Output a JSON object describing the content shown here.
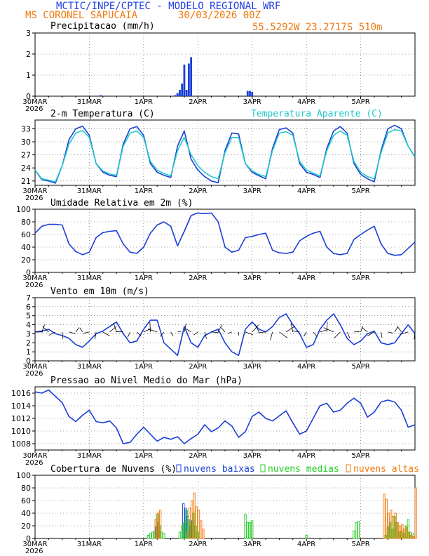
{
  "header": {
    "line1": "MCTIC/INPE/CPTEC - MODELO REGIONAL WRF",
    "station": "MS CORONEL SAPUCAIA",
    "run": "30/03/2026 00Z",
    "coords": "55.5292W 23.2717S 510m",
    "colors": {
      "line1": "#1f3fe0",
      "line2": "#f07a10"
    }
  },
  "time_axis": {
    "day_labels": [
      "30MAR",
      "31MAR",
      "1APR",
      "2APR",
      "3APR",
      "4APR",
      "5APR"
    ],
    "year": "2026"
  },
  "panels": [
    {
      "title": "Precipitacao (mm/h)"
    },
    {
      "title": "2-m Temperatura (C)",
      "legend": "Temperatura Aparente (C)"
    },
    {
      "title": "Umidade Relativa em 2m (%)"
    },
    {
      "title": "Vento em 10m (m/s)"
    },
    {
      "title": "Pressao ao Nivel Medio do Mar (hPa)"
    },
    {
      "title": "Cobertura de Nuvens (%)",
      "legend": [
        "nuvens baixas",
        "nuvens medias",
        "nuvens altas"
      ]
    }
  ],
  "chart_data": [
    {
      "type": "bar",
      "title": "Precipitacao (mm/h)",
      "ylim": [
        0,
        3
      ],
      "yticks": [
        0,
        1,
        2,
        3
      ],
      "color": "#1b3fd6",
      "x_hours": [
        29,
        62,
        63,
        64,
        65,
        66,
        67,
        68,
        69,
        94,
        95,
        96
      ],
      "values": [
        0.05,
        0.05,
        0.15,
        0.3,
        0.6,
        1.5,
        0.3,
        1.55,
        1.85,
        0.25,
        0.25,
        0.2
      ]
    },
    {
      "type": "line",
      "title": "2-m Temperatura (C)",
      "ylim": [
        20,
        35
      ],
      "yticks": [
        21,
        24,
        27,
        30,
        33
      ],
      "x_hours": [
        0,
        3,
        6,
        9,
        12,
        15,
        18,
        21,
        24,
        27,
        30,
        33,
        36,
        39,
        42,
        45,
        48,
        51,
        54,
        57,
        60,
        63,
        66,
        69,
        72,
        75,
        78,
        81,
        84,
        87,
        90,
        93,
        96,
        99,
        102,
        105,
        108,
        111,
        114,
        117,
        120,
        123,
        126,
        129,
        132,
        135,
        138,
        141,
        144,
        147,
        150,
        153,
        156,
        159,
        162,
        165,
        168
      ],
      "series": [
        {
          "name": "2-m Temperatura (C)",
          "color": "#1b3fd6",
          "values": [
            23.5,
            21.3,
            21.0,
            20.5,
            24.5,
            30.5,
            33.0,
            33.6,
            31.5,
            25.0,
            23.0,
            22.3,
            22.0,
            29.5,
            33.0,
            33.5,
            31.5,
            25.0,
            23.0,
            22.3,
            21.8,
            29.0,
            32.5,
            26.0,
            23.5,
            22.0,
            21.0,
            20.6,
            28.0,
            32.0,
            31.8,
            25.0,
            23.0,
            22.2,
            21.5,
            28.5,
            32.8,
            33.2,
            32.0,
            25.0,
            23.0,
            22.5,
            21.8,
            28.5,
            32.5,
            33.5,
            32.0,
            25.0,
            22.5,
            21.5,
            20.8,
            28.0,
            33.0,
            33.8,
            33.0,
            29.0,
            26.5
          ]
        },
        {
          "name": "Temperatura Aparente (C)",
          "color": "#20c8c8",
          "values": [
            23.5,
            21.5,
            21.2,
            20.8,
            24.5,
            29.5,
            32.0,
            32.6,
            31.0,
            25.0,
            23.3,
            22.6,
            22.3,
            29.0,
            32.0,
            32.5,
            31.0,
            25.5,
            23.5,
            22.7,
            22.2,
            28.0,
            31.0,
            27.0,
            24.5,
            23.0,
            22.0,
            21.5,
            27.5,
            31.0,
            31.0,
            25.0,
            23.3,
            22.5,
            22.0,
            28.0,
            32.0,
            32.3,
            31.5,
            25.5,
            23.5,
            22.8,
            22.2,
            28.0,
            31.5,
            32.5,
            31.5,
            25.5,
            23.0,
            22.0,
            21.5,
            27.5,
            32.0,
            32.8,
            32.5,
            29.0,
            26.5
          ]
        }
      ]
    },
    {
      "type": "line",
      "title": "Umidade Relativa em 2m (%)",
      "ylim": [
        0,
        100
      ],
      "yticks": [
        0,
        20,
        40,
        60,
        80,
        100
      ],
      "x_hours": [
        0,
        3,
        6,
        9,
        12,
        15,
        18,
        21,
        24,
        27,
        30,
        33,
        36,
        39,
        42,
        45,
        48,
        51,
        54,
        57,
        60,
        63,
        66,
        69,
        72,
        75,
        78,
        81,
        84,
        87,
        90,
        93,
        96,
        99,
        102,
        105,
        108,
        111,
        114,
        117,
        120,
        123,
        126,
        129,
        132,
        135,
        138,
        141,
        144,
        147,
        150,
        153,
        156,
        159,
        162,
        165,
        168
      ],
      "series": [
        {
          "name": "Umidade Relativa",
          "color": "#1b3fd6",
          "values": [
            62,
            73,
            76,
            76,
            75,
            45,
            33,
            28,
            32,
            55,
            63,
            65,
            66,
            45,
            32,
            30,
            40,
            62,
            75,
            80,
            73,
            42,
            65,
            90,
            94,
            93,
            94,
            80,
            40,
            32,
            35,
            55,
            57,
            60,
            62,
            35,
            31,
            30,
            32,
            50,
            57,
            62,
            65,
            40,
            30,
            28,
            30,
            52,
            60,
            67,
            73,
            45,
            30,
            27,
            28,
            38,
            48
          ]
        }
      ]
    },
    {
      "type": "line",
      "title": "Vento em 10m (m/s)",
      "ylim": [
        0,
        7
      ],
      "yticks": [
        0,
        1,
        2,
        3,
        4,
        5,
        6,
        7
      ],
      "x_hours": [
        0,
        3,
        6,
        9,
        12,
        15,
        18,
        21,
        24,
        27,
        30,
        33,
        36,
        39,
        42,
        45,
        48,
        51,
        54,
        57,
        60,
        63,
        66,
        69,
        72,
        75,
        78,
        81,
        84,
        87,
        90,
        93,
        96,
        99,
        102,
        105,
        108,
        111,
        114,
        117,
        120,
        123,
        126,
        129,
        132,
        135,
        138,
        141,
        144,
        147,
        150,
        153,
        156,
        159,
        162,
        165,
        168
      ],
      "series": [
        {
          "name": "Vento em 10m",
          "color": "#1b3fd6",
          "values": [
            3.2,
            3.3,
            3.5,
            3.0,
            2.8,
            2.5,
            1.8,
            1.5,
            2.2,
            3.0,
            3.3,
            3.8,
            4.3,
            3.0,
            2.0,
            2.2,
            3.5,
            4.5,
            4.5,
            2.0,
            1.3,
            0.6,
            3.8,
            2.0,
            1.5,
            2.8,
            3.2,
            3.5,
            2.0,
            1.0,
            0.6,
            3.5,
            4.3,
            3.5,
            3.2,
            3.8,
            4.8,
            5.2,
            4.0,
            3.0,
            1.5,
            1.8,
            3.5,
            4.5,
            5.2,
            4.0,
            2.5,
            1.8,
            2.2,
            3.0,
            3.3,
            2.0,
            1.8,
            2.0,
            3.0,
            4.0,
            3.0
          ]
        }
      ]
    },
    {
      "type": "line",
      "title": "Pressao ao Nivel Medio do Mar (hPa)",
      "ylim": [
        1007,
        1017
      ],
      "yticks": [
        1008,
        1010,
        1012,
        1014,
        1016
      ],
      "x_hours": [
        0,
        3,
        6,
        9,
        12,
        15,
        18,
        21,
        24,
        27,
        30,
        33,
        36,
        39,
        42,
        45,
        48,
        51,
        54,
        57,
        60,
        63,
        66,
        69,
        72,
        75,
        78,
        81,
        84,
        87,
        90,
        93,
        96,
        99,
        102,
        105,
        108,
        111,
        114,
        117,
        120,
        123,
        126,
        129,
        132,
        135,
        138,
        141,
        144,
        147,
        150,
        153,
        156,
        159,
        162,
        165,
        168
      ],
      "series": [
        {
          "name": "Pressao",
          "color": "#1b3fd6",
          "values": [
            1016.2,
            1016.0,
            1016.5,
            1015.5,
            1014.5,
            1012.3,
            1011.5,
            1012.5,
            1013.3,
            1011.5,
            1011.3,
            1011.6,
            1010.5,
            1008.0,
            1008.2,
            1009.5,
            1010.6,
            1009.5,
            1008.4,
            1009.0,
            1008.7,
            1009.1,
            1008.0,
            1008.8,
            1009.5,
            1011.0,
            1009.9,
            1010.5,
            1011.6,
            1010.8,
            1009.0,
            1009.9,
            1012.3,
            1013.0,
            1012.0,
            1011.6,
            1012.4,
            1013.2,
            1011.3,
            1009.5,
            1010.0,
            1012.0,
            1014.0,
            1014.4,
            1013.0,
            1013.3,
            1014.4,
            1015.2,
            1014.4,
            1012.2,
            1013.0,
            1014.6,
            1014.9,
            1014.6,
            1013.3,
            1010.6,
            1011.0
          ]
        }
      ]
    },
    {
      "type": "bar",
      "title": "Cobertura de Nuvens (%)",
      "ylim": [
        0,
        100
      ],
      "yticks": [
        0,
        20,
        40,
        60,
        80,
        100
      ],
      "series": [
        {
          "name": "nuvens baixas",
          "color": "#1b3fd6",
          "x_hours": [
            54,
            55,
            66,
            67,
            68,
            69,
            70
          ],
          "values": [
            18,
            25,
            55,
            48,
            35,
            20,
            28
          ]
        },
        {
          "name": "nuvens medias",
          "color": "#22cc22",
          "x_hours": [
            50,
            51,
            52,
            53,
            54,
            55,
            56,
            57,
            64,
            65,
            66,
            67,
            68,
            69,
            70,
            71,
            72,
            93,
            94,
            95,
            96,
            120,
            141,
            142,
            143,
            155,
            156,
            157,
            158,
            159,
            160,
            161,
            162,
            163,
            164,
            165,
            166,
            167
          ],
          "values": [
            5,
            8,
            10,
            12,
            38,
            20,
            10,
            8,
            10,
            20,
            25,
            45,
            30,
            25,
            40,
            20,
            10,
            38,
            25,
            25,
            28,
            5,
            12,
            25,
            27,
            5,
            18,
            25,
            15,
            35,
            25,
            10,
            12,
            8,
            20,
            30,
            10,
            8
          ]
        },
        {
          "name": "nuvens altas",
          "color": "#f07a10",
          "x_hours": [
            53,
            54,
            55,
            67,
            68,
            69,
            70,
            71,
            72,
            73,
            74,
            154,
            155,
            156,
            157,
            158,
            159,
            160,
            161,
            162,
            163,
            164,
            165,
            166,
            167,
            168
          ],
          "values": [
            30,
            40,
            45,
            10,
            48,
            60,
            72,
            50,
            45,
            28,
            15,
            70,
            62,
            40,
            45,
            35,
            40,
            25,
            20,
            22,
            15,
            18,
            10,
            5,
            3,
            80
          ]
        }
      ]
    }
  ]
}
